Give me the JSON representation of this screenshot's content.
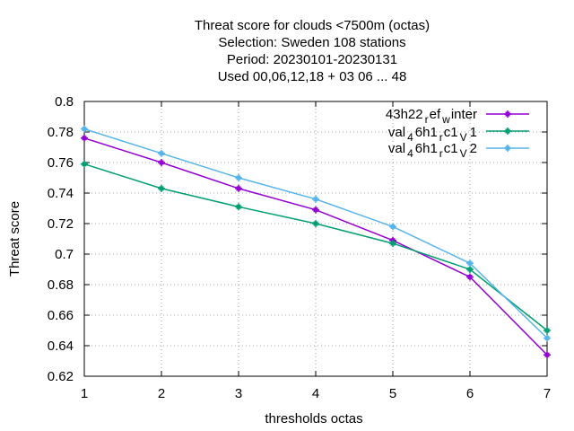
{
  "chart_data": {
    "type": "line",
    "title_lines": [
      "Threat score  for clouds <7500m (octas)",
      "Selection: Sweden    108 stations",
      "Period: 20230101-20230131",
      "Used  00,06,12,18  + 03 06 ... 48"
    ],
    "xlabel": "thresholds octas",
    "ylabel": "Threat score",
    "x": [
      1,
      2,
      3,
      4,
      5,
      6,
      7
    ],
    "xlim": [
      1,
      7
    ],
    "ylim": [
      0.62,
      0.8
    ],
    "xticks": [
      "1",
      "2",
      "3",
      "4",
      "5",
      "6",
      "7"
    ],
    "yticks": [
      0.62,
      0.64,
      0.66,
      0.68,
      0.7,
      0.72,
      0.74,
      0.76,
      0.78,
      0.8
    ],
    "ytick_labels": [
      "0.62",
      "0.64",
      "0.66",
      "0.68",
      "0.7",
      "0.72",
      "0.74",
      "0.76",
      "0.78",
      "0.8"
    ],
    "grid": true,
    "legend_position": "top-right",
    "series": [
      {
        "legend": {
          "a": "43h22",
          "b": "r",
          "c": "ef",
          "d": "w",
          "e": "inter"
        },
        "color": "#9400d3",
        "values": [
          0.776,
          0.76,
          0.743,
          0.729,
          0.709,
          0.685,
          0.634
        ]
      },
      {
        "legend": {
          "a": "val",
          "b": "4",
          "c": "6h1",
          "d": "r",
          "e": "c1",
          "f": "V",
          "g": "1"
        },
        "color": "#009e73",
        "values": [
          0.759,
          0.743,
          0.731,
          0.72,
          0.707,
          0.69,
          0.65
        ]
      },
      {
        "legend": {
          "a": "val",
          "b": "4",
          "c": "6h1",
          "d": "r",
          "e": "c1",
          "f": "V",
          "g": "2"
        },
        "color": "#56b4e9",
        "values": [
          0.782,
          0.766,
          0.75,
          0.736,
          0.718,
          0.694,
          0.645
        ]
      }
    ]
  }
}
